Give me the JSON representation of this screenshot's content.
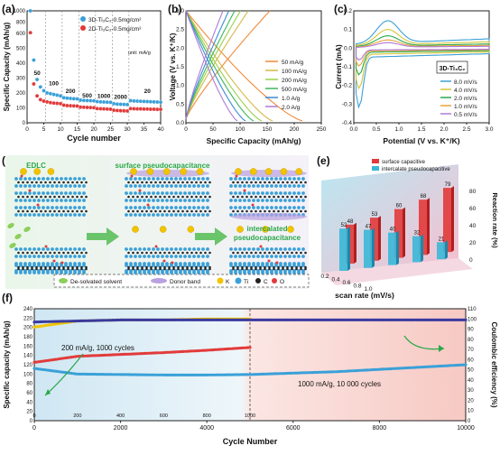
{
  "panel_letters": {
    "a": "(a)",
    "b": "(b)",
    "c": "(c)",
    "d": "(d)",
    "e": "(e)",
    "f": "(f)"
  },
  "colors": {
    "blue": "#3aa0d8",
    "red": "#e23a3a",
    "yellow": "#f2c400",
    "navy": "#3a3aa0",
    "green": "#2aa84a",
    "violet": "#b07ad8"
  },
  "chart_data": [
    {
      "id": "a",
      "type": "scatter",
      "xlabel": "Cycle number",
      "ylabel": "Specific Capacity (mAh/g)",
      "xlim": [
        0,
        40
      ],
      "ylim": [
        0,
        1000
      ],
      "xticks": [
        "0",
        "5",
        "10",
        "15",
        "20",
        "25",
        "30",
        "35",
        "40"
      ],
      "yticks": [
        "0",
        "100",
        "200",
        "300",
        "400",
        "500",
        "600",
        "800",
        "1000"
      ],
      "unit_note": "unit: mA/g",
      "rate_labels": [
        "50",
        "100",
        "200",
        "500",
        "1000",
        "2000",
        "20"
      ],
      "series": [
        {
          "name": "3D-Ti₃C₂-0.5mg/cm²",
          "color": "#3aa0d8",
          "x": [
            1,
            2,
            3,
            4,
            5,
            6,
            7,
            8,
            9,
            10,
            11,
            12,
            13,
            14,
            15,
            16,
            17,
            18,
            19,
            20,
            21,
            22,
            23,
            24,
            25,
            26,
            27,
            28,
            29,
            30,
            31,
            32,
            33,
            34,
            35,
            36,
            37,
            38,
            39,
            40
          ],
          "values": [
            1000,
            420,
            290,
            240,
            215,
            200,
            195,
            190,
            185,
            180,
            168,
            165,
            163,
            161,
            160,
            152,
            150,
            149,
            148,
            147,
            142,
            140,
            139,
            138,
            137,
            128,
            125,
            124,
            123,
            122,
            148,
            146,
            145,
            144,
            143,
            142,
            141,
            140,
            139,
            138
          ]
        },
        {
          "name": "2D-Ti₃C₂-0.5mg/cm²",
          "color": "#e23a3a",
          "x": [
            1,
            2,
            3,
            4,
            5,
            6,
            7,
            8,
            9,
            10,
            11,
            12,
            13,
            14,
            15,
            16,
            17,
            18,
            19,
            20,
            21,
            22,
            23,
            24,
            25,
            26,
            27,
            28,
            29,
            30,
            31,
            32,
            33,
            34,
            35,
            36,
            37,
            38,
            39,
            40
          ],
          "values": [
            610,
            260,
            180,
            155,
            145,
            140,
            135,
            132,
            130,
            128,
            118,
            115,
            114,
            113,
            112,
            105,
            104,
            103,
            102,
            101,
            95,
            94,
            93,
            92,
            91,
            84,
            82,
            81,
            80,
            79,
            95,
            94,
            93,
            93,
            92,
            92,
            91,
            91,
            90,
            90
          ]
        }
      ]
    },
    {
      "id": "b",
      "type": "line",
      "xlabel": "Specific Capacity (mAh/g)",
      "ylabel": "Voltage (V vs. K⁺/K)",
      "xlim": [
        0,
        250
      ],
      "ylim": [
        0,
        3.0
      ],
      "xticks": [
        "0",
        "50",
        "100",
        "150",
        "200",
        "250"
      ],
      "yticks": [
        "0.0",
        "0.5",
        "1.0",
        "1.5",
        "2.0",
        "2.5",
        "3.0"
      ],
      "series": [
        {
          "name": "50 mA/g",
          "color": "#f08a3a",
          "capacity": 215
        },
        {
          "name": "100 mA/g",
          "color": "#d6b84a",
          "capacity": 160
        },
        {
          "name": "200 mA/g",
          "color": "#9ad24a",
          "capacity": 140
        },
        {
          "name": "500 mA/g",
          "color": "#3ab85a",
          "capacity": 125
        },
        {
          "name": "1.0 A/g",
          "color": "#3a8ad8",
          "capacity": 110
        },
        {
          "name": "2.0 A/g",
          "color": "#b07ad8",
          "capacity": 95
        }
      ]
    },
    {
      "id": "c",
      "type": "line",
      "xlabel": "Potential (V vs. K⁺/K)",
      "ylabel": "Current (mA)",
      "xlim": [
        0,
        3.0
      ],
      "ylim": [
        -0.4,
        0.2
      ],
      "xticks": [
        "0.0",
        "0.5",
        "1.0",
        "1.5",
        "2.0",
        "2.5",
        "3.0"
      ],
      "yticks": [
        "-0.4",
        "-0.3",
        "-0.2",
        "-0.1",
        "0.0",
        "0.1",
        "0.2"
      ],
      "legend_title": "3D-Ti₃C₂",
      "series": [
        {
          "name": "8.0 mV/s",
          "color": "#3aa0d8",
          "amp": 1.0
        },
        {
          "name": "4.0 mV/s",
          "color": "#d6c43a",
          "amp": 0.68
        },
        {
          "name": "2.0 mV/s",
          "color": "#2aa84a",
          "amp": 0.45
        },
        {
          "name": "1.0 mV/s",
          "color": "#e8a23a",
          "amp": 0.3
        },
        {
          "name": "0.5 mV/s",
          "color": "#b07ad8",
          "amp": 0.2
        }
      ]
    },
    {
      "id": "e",
      "type": "bar",
      "xlabel": "scan rate (mV/s)",
      "ylabel": "Reaction rate (%)",
      "categories": [
        "0.2",
        "0.4",
        "0.6",
        "0.8",
        "1.0"
      ],
      "ylim": [
        0,
        100
      ],
      "yticks": [
        "0",
        "20",
        "40",
        "60",
        "80"
      ],
      "series": [
        {
          "name": "surface capacitive",
          "color": "#e23a3a",
          "values": [
            48,
            53,
            60,
            68,
            79
          ]
        },
        {
          "name": "intercalate pseudocapacitive",
          "color": "#3ab8d8",
          "values": [
            52,
            47,
            40,
            32,
            21
          ]
        }
      ]
    },
    {
      "id": "f",
      "type": "scatter",
      "xlabel": "Cycle Number",
      "ylabel": "Specific capacity (mAh/g)",
      "y2label": "Coulombic efficiency (%)",
      "xlim": [
        0,
        10000
      ],
      "ylim": [
        0,
        240
      ],
      "y2lim": [
        0,
        110
      ],
      "xticks": [
        "0",
        "2000",
        "4000",
        "6000",
        "8000",
        "10000"
      ],
      "yticks": [
        "0",
        "20",
        "40",
        "60",
        "80",
        "100",
        "120",
        "140",
        "160",
        "180",
        "200",
        "220",
        "240"
      ],
      "y2ticks": [
        "0",
        "10",
        "20",
        "30",
        "40",
        "50",
        "60",
        "70",
        "80",
        "90",
        "100",
        "110"
      ],
      "top_xticks": [
        "0",
        "200",
        "400",
        "600",
        "800",
        "1000"
      ],
      "annotations": [
        "200 mA/g, 1000 cycles",
        "1000 mA/g, 10 000 cycles"
      ],
      "series": [
        {
          "name": "capacity 200 mA/g",
          "color": "#e23a3a",
          "x": [
            0,
            1000,
            2000,
            3000,
            4000,
            5000
          ],
          "values": [
            125,
            138,
            142,
            146,
            151,
            157
          ]
        },
        {
          "name": "CE 200 mA/g",
          "color": "#f2c400",
          "x": [
            0,
            1000,
            2000,
            3000,
            4000,
            5000
          ],
          "values": [
            92,
            98,
            99,
            99,
            100,
            100
          ]
        },
        {
          "name": "capacity 1000 mA/g",
          "color": "#3aa0d8",
          "x": [
            0,
            1000,
            2000,
            3000,
            4000,
            5000,
            6000,
            7000,
            8000,
            9000,
            10000
          ],
          "values": [
            112,
            100,
            99,
            98,
            98,
            99,
            102,
            105,
            110,
            115,
            120
          ]
        },
        {
          "name": "CE 1000 mA/g",
          "color": "#3a3aa0",
          "x": [
            0,
            2000,
            4000,
            5000,
            6000,
            8000,
            10000
          ],
          "values": [
            97,
            99,
            99,
            99,
            99,
            99,
            99
          ]
        }
      ]
    }
  ],
  "panel_d": {
    "labels": [
      "EDLC",
      "surface pseudocapacitance",
      "intercalated",
      "pseudocapacitance"
    ],
    "legend": [
      "De-solvated solvent",
      "Donor band",
      "K",
      "Ti",
      "C",
      "O"
    ]
  }
}
